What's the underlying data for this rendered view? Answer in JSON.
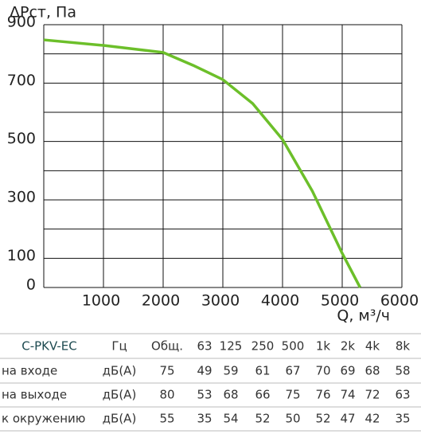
{
  "chart_data": {
    "type": "line",
    "y_label": "ΔPст, Па",
    "x_label": "Q, м³/ч",
    "x": [
      0,
      1000,
      2000,
      2500,
      3000,
      3500,
      4000,
      4500,
      5000,
      5300
    ],
    "series": [
      {
        "color": "#6cbf2a",
        "values": [
          848,
          829,
          805,
          761,
          712,
          630,
          507,
          330,
          117,
          0
        ]
      }
    ],
    "xlim": [
      0,
      6000
    ],
    "ylim": [
      0,
      900
    ],
    "xticks": [
      1000,
      2000,
      3000,
      4000,
      5000,
      6000
    ],
    "yticks": [
      0,
      100,
      300,
      500,
      700,
      900
    ],
    "xgrid": [
      0,
      1000,
      2000,
      3000,
      4000,
      5000,
      6000
    ],
    "ygrid": [
      0,
      100,
      200,
      300,
      400,
      500,
      600,
      700,
      800,
      900
    ],
    "grid": true
  },
  "table": {
    "header": [
      "C-PKV-EC",
      "Гц",
      "Общ.",
      "63",
      "125",
      "250",
      "500",
      "1k",
      "2k",
      "4k",
      "8k"
    ],
    "rows": [
      [
        "на входе",
        "дБ(А)",
        75,
        49,
        59,
        61,
        67,
        70,
        69,
        68,
        58
      ],
      [
        "на выходе",
        "дБ(А)",
        80,
        53,
        68,
        66,
        75,
        76,
        74,
        72,
        63
      ],
      [
        "к окружению",
        "дБ(А)",
        55,
        35,
        54,
        52,
        50,
        52,
        47,
        42,
        35
      ]
    ]
  }
}
